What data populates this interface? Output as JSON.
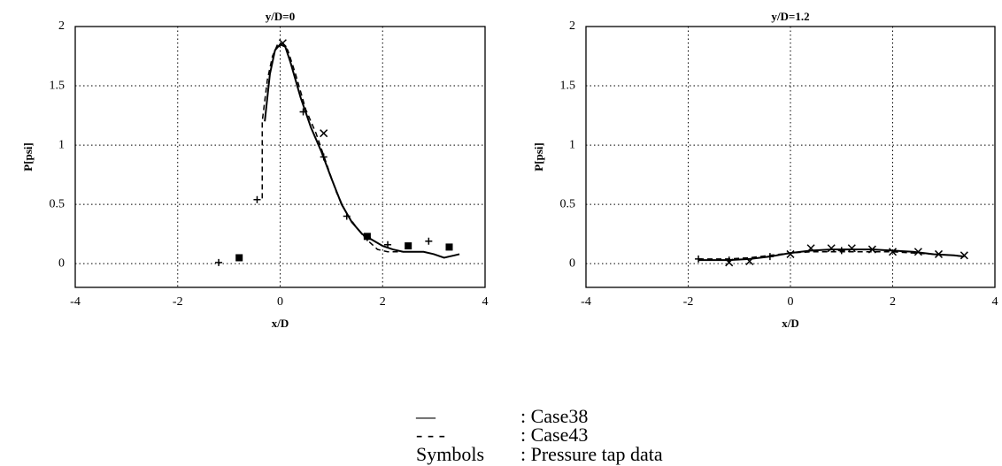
{
  "chart_data": [
    {
      "type": "line",
      "title": "y/D=0",
      "x_label": "x/D",
      "y_label": "P[psi]",
      "xlim": [
        -4,
        4
      ],
      "xticks": [
        -4,
        -2,
        0,
        2,
        4
      ],
      "ylim": [
        -0.2,
        2
      ],
      "yticks": [
        0,
        0.5,
        1,
        1.5,
        2
      ],
      "grid": true,
      "series": [
        {
          "style": "solid",
          "color": "#000000",
          "x": [
            -0.3,
            -0.2,
            -0.1,
            0,
            0.1,
            0.2,
            0.4,
            0.6,
            0.8,
            1.0,
            1.2,
            1.4,
            1.6,
            1.8,
            2.0,
            2.2,
            2.4,
            2.6,
            2.8,
            3.0,
            3.2,
            3.4,
            3.5
          ],
          "values": [
            1.2,
            1.6,
            1.8,
            1.85,
            1.83,
            1.7,
            1.4,
            1.15,
            0.95,
            0.72,
            0.5,
            0.35,
            0.25,
            0.2,
            0.15,
            0.12,
            0.1,
            0.1,
            0.1,
            0.08,
            0.05,
            0.07,
            0.08
          ]
        },
        {
          "style": "dashed",
          "color": "#000000",
          "x": [
            -0.35,
            -0.35,
            -0.25,
            -0.15,
            -0.05,
            0.05,
            0.15,
            0.3,
            0.5,
            0.7,
            0.9,
            1.1,
            1.3,
            1.5,
            1.7,
            1.9,
            2.1,
            2.3,
            2.5
          ],
          "values": [
            0.55,
            1.2,
            1.55,
            1.75,
            1.85,
            1.86,
            1.8,
            1.6,
            1.3,
            1.1,
            0.85,
            0.6,
            0.42,
            0.3,
            0.2,
            0.12,
            0.1,
            0.1,
            0.1
          ]
        },
        {
          "style": "markers",
          "marker": "plus",
          "color": "#000000",
          "x": [
            -1.2,
            -0.45,
            0.45,
            0.85,
            1.3,
            1.7,
            2.1,
            2.9
          ],
          "values": [
            0.01,
            0.54,
            1.28,
            0.9,
            0.4,
            0.22,
            0.16,
            0.19
          ]
        },
        {
          "style": "markers",
          "marker": "cross",
          "color": "#000000",
          "x": [
            0.05,
            0.85
          ],
          "values": [
            1.86,
            1.1
          ]
        },
        {
          "style": "markers",
          "marker": "square",
          "color": "#000000",
          "x": [
            -0.8,
            1.7,
            2.5,
            3.3
          ],
          "values": [
            0.05,
            0.23,
            0.15,
            0.14
          ]
        }
      ]
    },
    {
      "type": "line",
      "title": "y/D=1.2",
      "x_label": "x/D",
      "y_label": "P[psi]",
      "xlim": [
        -4,
        4
      ],
      "xticks": [
        -4,
        -2,
        0,
        2,
        4
      ],
      "ylim": [
        -0.2,
        2
      ],
      "yticks": [
        0,
        0.5,
        1,
        1.5,
        2
      ],
      "grid": true,
      "series": [
        {
          "style": "solid",
          "color": "#000000",
          "x": [
            -1.8,
            -1.2,
            -0.8,
            -0.4,
            0,
            0.4,
            0.8,
            1.2,
            1.6,
            2.0,
            2.4,
            2.8,
            3.2,
            3.4
          ],
          "values": [
            0.03,
            0.03,
            0.04,
            0.06,
            0.09,
            0.11,
            0.12,
            0.12,
            0.12,
            0.11,
            0.1,
            0.08,
            0.07,
            0.06
          ]
        },
        {
          "style": "dashed",
          "color": "#000000",
          "x": [
            -1.8,
            -1.2,
            -0.8,
            -0.4,
            0,
            0.4,
            0.8,
            1.2,
            1.6,
            2.0,
            2.4,
            2.8,
            3.2,
            3.4
          ],
          "values": [
            0.04,
            0.04,
            0.05,
            0.07,
            0.09,
            0.1,
            0.1,
            0.1,
            0.1,
            0.1,
            0.09,
            0.08,
            0.07,
            0.06
          ]
        },
        {
          "style": "markers",
          "marker": "cross",
          "color": "#000000",
          "x": [
            -1.2,
            -0.8,
            0,
            0.4,
            0.8,
            1.2,
            1.6,
            2.0,
            2.5,
            2.9,
            3.4
          ],
          "values": [
            0.01,
            0.02,
            0.08,
            0.13,
            0.13,
            0.13,
            0.12,
            0.1,
            0.1,
            0.08,
            0.07
          ]
        },
        {
          "style": "markers",
          "marker": "plus",
          "color": "#000000",
          "x": [
            -1.8,
            -1.2,
            -0.4,
            1.0
          ],
          "values": [
            0.04,
            0.03,
            0.06,
            0.11
          ]
        }
      ]
    }
  ],
  "legend": [
    {
      "symbol": "—",
      "label": ": Case38"
    },
    {
      "symbol": "- - -",
      "label": ": Case43"
    },
    {
      "symbol": "Symbols",
      "label": ": Pressure tap data"
    }
  ]
}
